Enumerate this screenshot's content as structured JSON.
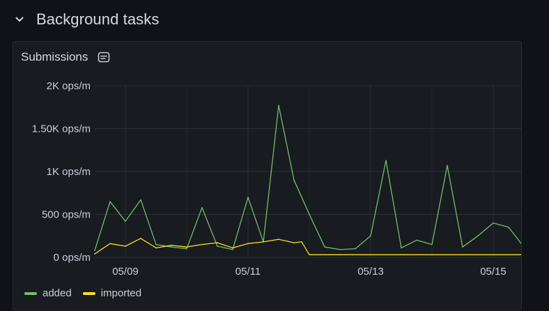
{
  "row": {
    "title": "Background tasks",
    "collapse_icon": "chevron-down-icon"
  },
  "panel": {
    "title": "Submissions",
    "description_icon": "document-icon"
  },
  "chart_data": {
    "type": "line",
    "ylim": [
      0,
      2000
    ],
    "yticks": [
      {
        "value": 0,
        "label": "0 ops/m"
      },
      {
        "value": 500,
        "label": "500 ops/m"
      },
      {
        "value": 1000,
        "label": "1K ops/m"
      },
      {
        "value": 1500,
        "label": "1.50K ops/m"
      },
      {
        "value": 2000,
        "label": "2K ops/m"
      }
    ],
    "xlim": [
      "05/08 12:00",
      "05/15 12:00"
    ],
    "xticks": [
      {
        "value": "05/09",
        "label": "05/09"
      },
      {
        "value": "05/11",
        "label": "05/11"
      },
      {
        "value": "05/13",
        "label": "05/13"
      },
      {
        "value": "05/15",
        "label": "05/15"
      }
    ],
    "grid": true,
    "legend": "bottom-left",
    "series": [
      {
        "name": "added",
        "color": "#73bf69",
        "x": [
          "05/08 12:00",
          "05/08 18:00",
          "05/09 00:00",
          "05/09 06:00",
          "05/09 12:00",
          "05/09 18:00",
          "05/10 00:00",
          "05/10 06:00",
          "05/10 12:00",
          "05/10 18:00",
          "05/11 00:00",
          "05/11 06:00",
          "05/11 12:00",
          "05/11 18:00",
          "05/12 00:00",
          "05/12 06:00",
          "05/12 12:00",
          "05/12 18:00",
          "05/13 00:00",
          "05/13 06:00",
          "05/13 12:00",
          "05/13 18:00",
          "05/14 00:00",
          "05/14 06:00",
          "05/14 12:00",
          "05/14 18:00",
          "05/15 00:00",
          "05/15 06:00",
          "05/15 12:00"
        ],
        "values": [
          80,
          650,
          420,
          670,
          150,
          120,
          100,
          580,
          130,
          90,
          700,
          180,
          1770,
          900,
          500,
          120,
          90,
          100,
          250,
          1130,
          110,
          200,
          150,
          1070,
          120,
          250,
          400,
          350,
          120
        ]
      },
      {
        "name": "imported",
        "color": "#fade2a",
        "x": [
          "05/08 12:00",
          "05/08 18:00",
          "05/09 00:00",
          "05/09 06:00",
          "05/09 12:00",
          "05/09 18:00",
          "05/10 00:00",
          "05/10 06:00",
          "05/10 12:00",
          "05/10 18:00",
          "05/11 00:00",
          "05/11 06:00",
          "05/11 12:00",
          "05/11 18:00",
          "05/11 21:00",
          "05/12 00:00",
          "05/12 12:00",
          "05/13 00:00",
          "05/13 12:00",
          "05/14 00:00",
          "05/14 12:00",
          "05/15 00:00",
          "05/15 12:00"
        ],
        "values": [
          40,
          160,
          130,
          220,
          110,
          140,
          120,
          150,
          170,
          110,
          160,
          180,
          210,
          170,
          180,
          30,
          30,
          30,
          30,
          30,
          30,
          30,
          30
        ]
      }
    ]
  }
}
